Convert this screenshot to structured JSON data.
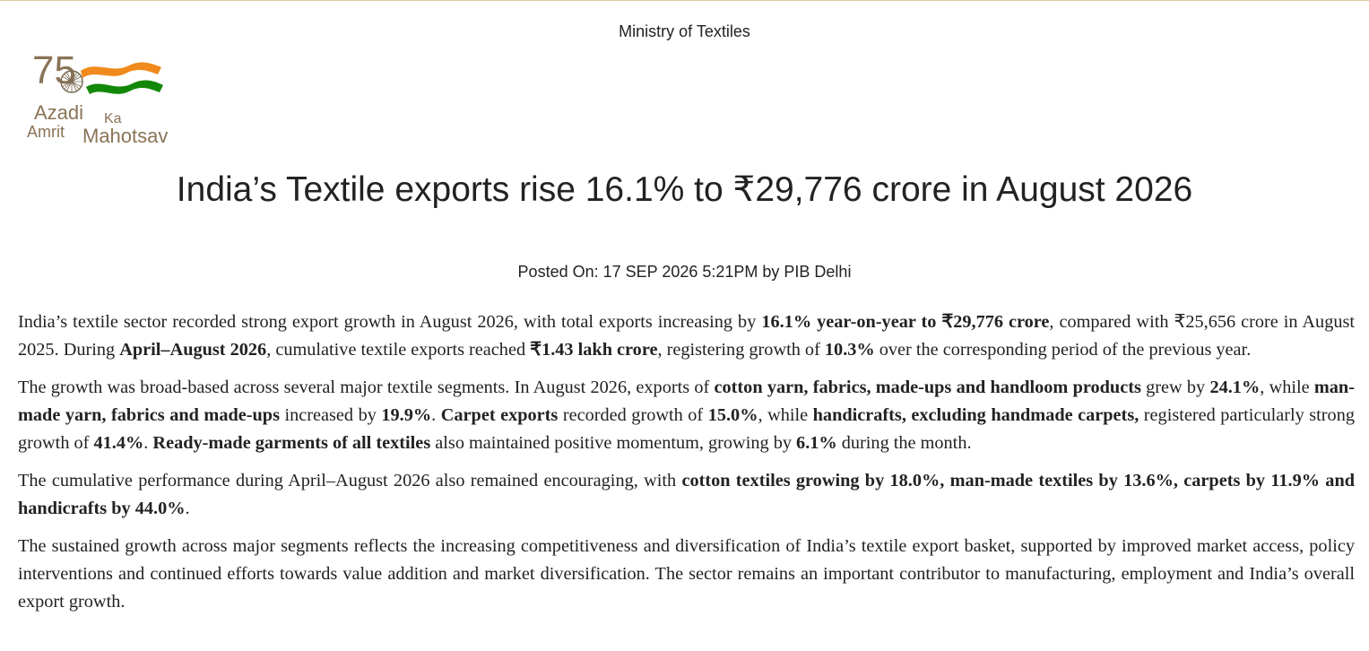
{
  "header": {
    "ministry": "Ministry of Textiles",
    "logo": {
      "number": "75",
      "line1": "Azadi",
      "line1_small": "Ka",
      "line2": "Amrit",
      "line2_big": "Mahotsav",
      "colors": {
        "saffron": "#f08a1c",
        "green": "#138808",
        "text": "#8a7356",
        "chakra": "#7a6a55"
      }
    }
  },
  "article": {
    "title": "India’s Textile exports rise 16.1% to ₹29,776 crore in August 2026",
    "posted": "Posted On: 17 SEP 2026 5:21PM by PIB Delhi",
    "p1": {
      "t1": "India’s textile sector recorded strong export growth in August 2026, with total exports increasing by ",
      "b1": "16.1% year-on-year to ₹29,776 crore",
      "t2": ", compared with ₹25,656 crore in August 2025. During ",
      "b2": "April–August 2026",
      "t3": ", cumulative textile exports reached ",
      "b3": "₹1.43 lakh crore",
      "t4": ", registering growth of ",
      "b4": "10.3%",
      "t5": " over the corresponding period of the previous year."
    },
    "p2": {
      "t1": "The growth was broad-based across several major textile segments. In August 2026, exports of ",
      "b1": "cotton yarn, fabrics, made-ups and handloom products",
      "t2": " grew by ",
      "b2": "24.1%",
      "t3": ", while ",
      "b3": "man-made yarn, fabrics and made-ups",
      "t4": " increased by ",
      "b4": "19.9%",
      "t5": ". ",
      "b5": "Carpet exports",
      "t6": " recorded growth of ",
      "b6": "15.0%",
      "t7": ", while ",
      "b7": "handicrafts, excluding handmade carpets,",
      "t8": " registered particularly strong growth of ",
      "b8": "41.4%",
      "t9": ". ",
      "b9": "Ready-made garments of all textiles",
      "t10": " also maintained positive momentum, growing by ",
      "b10": "6.1%",
      "t11": " during the month."
    },
    "p3": {
      "t1": "The cumulative performance during April–August 2026 also remained encouraging, with ",
      "b1": "cotton textiles growing by 18.0%, man-made textiles by 13.6%, carpets by 11.9% and handicrafts by 44.0%",
      "t2": "."
    },
    "p4": {
      "t1": "The sustained growth across major segments reflects the increasing competitiveness and diversification of India’s textile export basket, supported by improved market access, policy interventions and continued efforts towards value addition and market diversification. The sector remains an important contributor to manufacturing, employment and India’s overall export growth."
    }
  }
}
